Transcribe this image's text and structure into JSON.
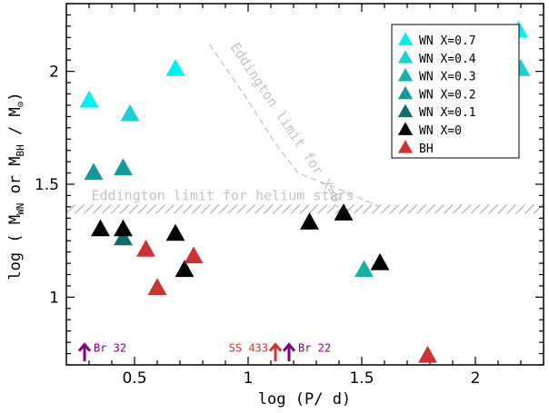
{
  "chart_data": {
    "type": "scatter",
    "xlabel": "log (P/ d)",
    "ylabel": "log ( M_WN or M_BH / M_⊙)",
    "xlim": [
      0.2,
      2.3
    ],
    "ylim": [
      0.7,
      2.3
    ],
    "x_ticks": [
      0.5,
      1,
      1.5,
      2
    ],
    "x_tick_labels": [
      "0.5",
      "1",
      "1.5",
      "2"
    ],
    "y_ticks": [
      1,
      1.5,
      2
    ],
    "y_tick_labels": [
      "1",
      "1.5",
      "2"
    ],
    "grid": false,
    "legend_position": "top-right",
    "series": [
      {
        "name": "WN X=0.7",
        "color": "#00f0f0",
        "points": [
          [
            0.3,
            1.87
          ],
          [
            0.68,
            2.01
          ],
          [
            2.19,
            2.18
          ]
        ]
      },
      {
        "name": "WN X=0.4",
        "color": "#1ecfcf",
        "points": [
          [
            0.48,
            1.81
          ],
          [
            2.2,
            2.01
          ]
        ]
      },
      {
        "name": "WN X=0.3",
        "color": "#19b0aa",
        "points": [
          [
            1.51,
            1.12
          ]
        ]
      },
      {
        "name": "WN X=0.2",
        "color": "#16989a",
        "points": [
          [
            0.32,
            1.55
          ],
          [
            0.45,
            1.57
          ]
        ]
      },
      {
        "name": "WN X=0.1",
        "color": "#0e6e6e",
        "points": [
          [
            0.45,
            1.26
          ]
        ]
      },
      {
        "name": "WN X=0",
        "color": "#000000",
        "points": [
          [
            0.35,
            1.3
          ],
          [
            0.45,
            1.3
          ],
          [
            0.68,
            1.28
          ],
          [
            0.72,
            1.12
          ],
          [
            1.27,
            1.33
          ],
          [
            1.42,
            1.37
          ],
          [
            1.58,
            1.15
          ]
        ]
      },
      {
        "name": "BH",
        "color": "#cc3333",
        "points": [
          [
            0.55,
            1.21
          ],
          [
            0.6,
            1.04
          ],
          [
            0.76,
            1.18
          ],
          [
            1.79,
            0.74
          ]
        ]
      }
    ],
    "limit_arrows": [
      {
        "label": "Br 32",
        "x": 0.28,
        "color": "#800080",
        "label_side": "right"
      },
      {
        "label": "SS 433",
        "x": 1.12,
        "color": "#cc3333",
        "label_side": "left"
      },
      {
        "label": "Br 22",
        "x": 1.18,
        "color": "#800080",
        "label_side": "right"
      }
    ],
    "annotations": {
      "helium_limit": {
        "text": "Eddington limit for helium stars",
        "y_low": 1.37,
        "y_high": 1.41
      },
      "x04_limit": {
        "text": "Eddington limit for X=0.4",
        "line": [
          [
            0.83,
            2.12
          ],
          [
            1.0,
            1.87
          ],
          [
            1.12,
            1.68
          ],
          [
            1.22,
            1.55
          ],
          [
            1.42,
            1.47
          ],
          [
            1.58,
            1.4
          ]
        ]
      }
    }
  }
}
